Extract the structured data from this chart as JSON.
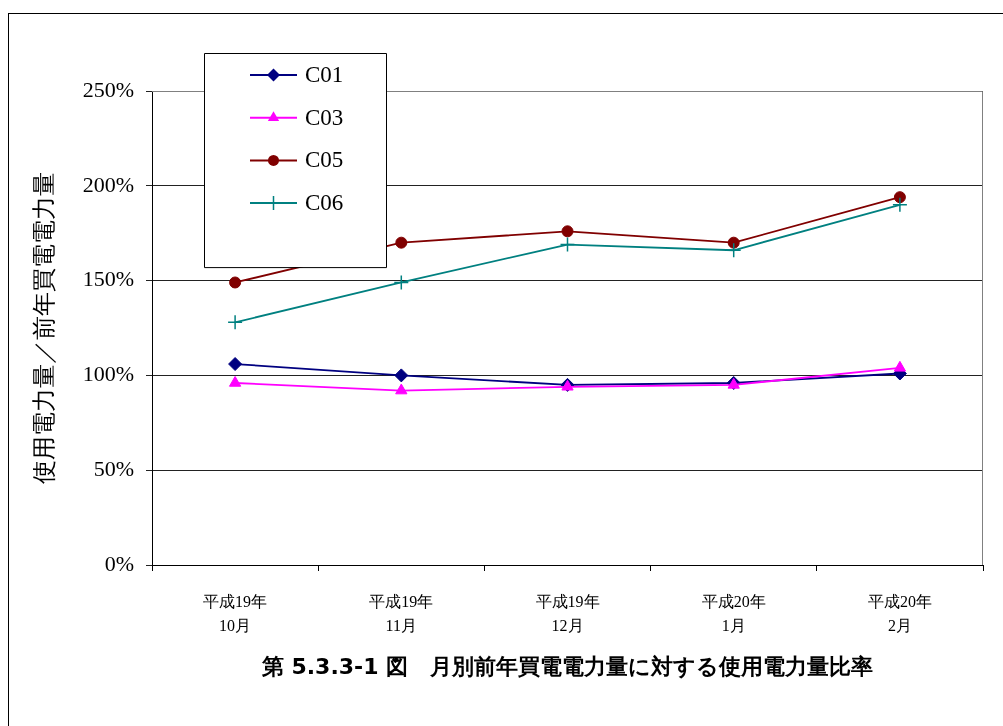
{
  "chart_data": {
    "type": "line",
    "title": "第 5.3.3-1 図　月別前年買電電力量に対する使用電力量比率",
    "ylabel": "使用電力量／前年買電電力量",
    "categories": [
      "平成19年\n10月",
      "平成19年\n11月",
      "平成19年\n12月",
      "平成20年\n1月",
      "平成20年\n2月"
    ],
    "series": [
      {
        "name": "C01",
        "color": "#000080",
        "marker": "diamond",
        "values": [
          106,
          100,
          95,
          96,
          101
        ]
      },
      {
        "name": "C03",
        "color": "#ff00ff",
        "marker": "triangle",
        "values": [
          96,
          92,
          94,
          95,
          104
        ]
      },
      {
        "name": "C05",
        "color": "#800000",
        "marker": "circle",
        "values": [
          149,
          170,
          176,
          170,
          194
        ]
      },
      {
        "name": "C06",
        "color": "#008080",
        "marker": "cross",
        "values": [
          128,
          149,
          169,
          166,
          190
        ]
      }
    ],
    "ylim": [
      0,
      250
    ],
    "yticks": [
      {
        "value": 0,
        "label": "0%"
      },
      {
        "value": 50,
        "label": "50%"
      },
      {
        "value": 100,
        "label": "100%"
      },
      {
        "value": 150,
        "label": "150%"
      },
      {
        "value": 200,
        "label": "200%"
      },
      {
        "value": 250,
        "label": "250%"
      }
    ],
    "grid": "y",
    "legend": "top left",
    "line_style": "solid"
  }
}
